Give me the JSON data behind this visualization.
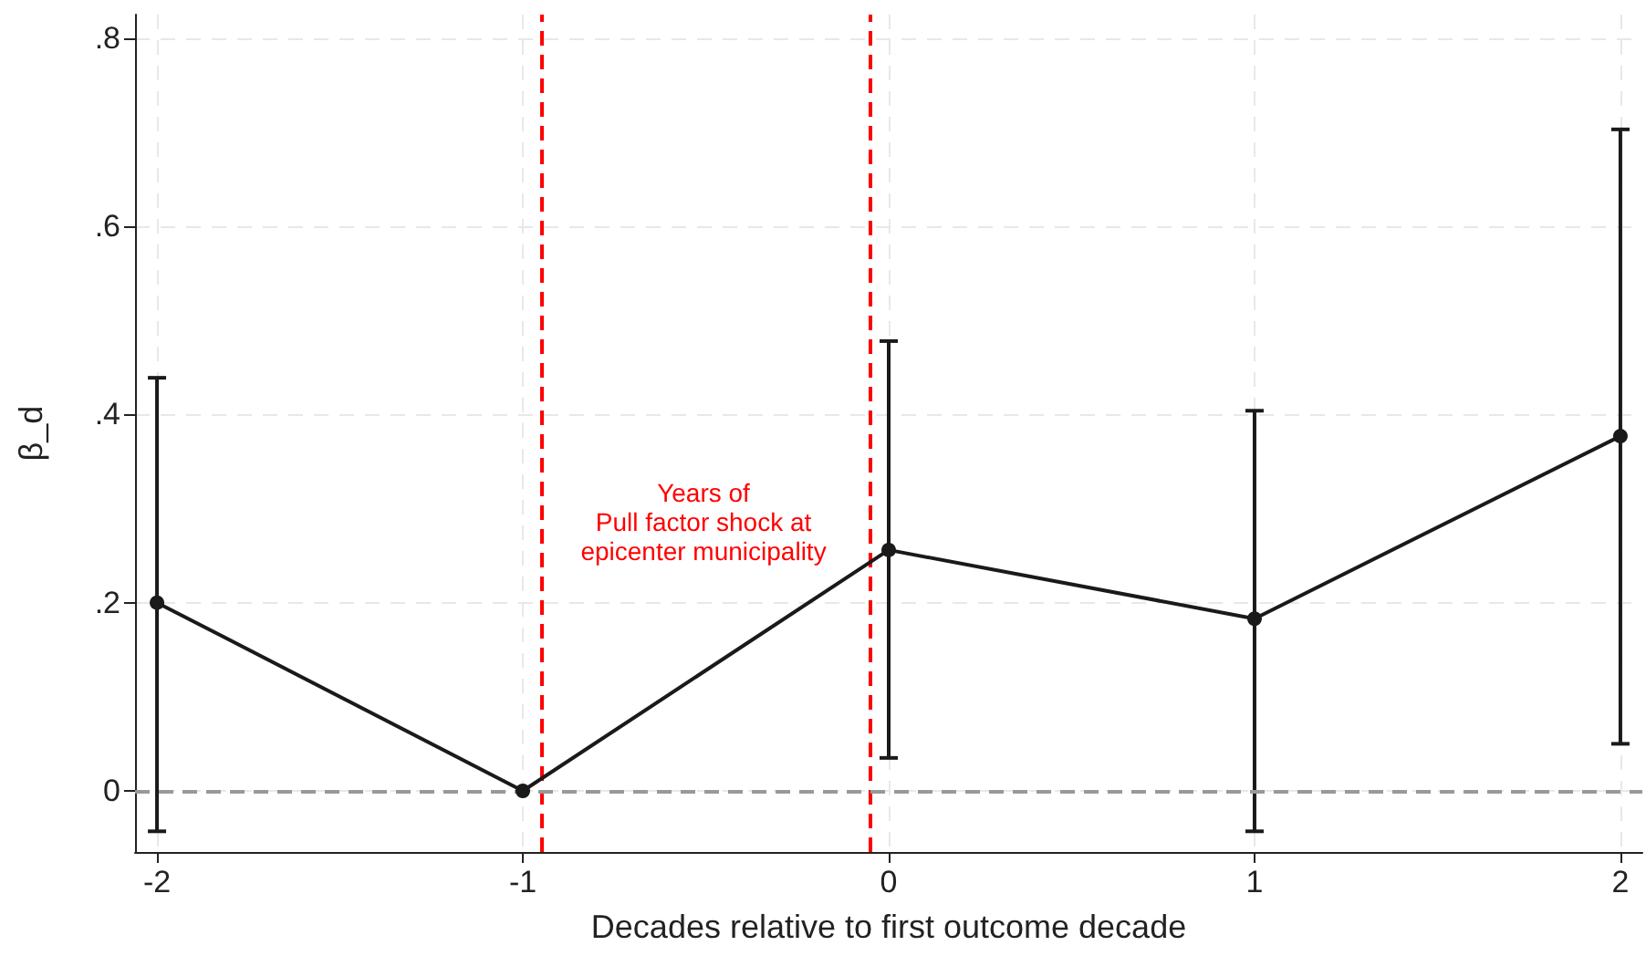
{
  "chart_data": {
    "type": "line",
    "xlabel": "Decades relative to first outcome decade",
    "ylabel": "β_d",
    "x": [
      -2,
      -1,
      0,
      1,
      2
    ],
    "series": [
      {
        "color": "#1a1a1a",
        "values": [
          0.2,
          0,
          0.256,
          0.183,
          0.377
        ],
        "errors": [
          [
            -0.043,
            0.439
          ],
          null,
          [
            0.035,
            0.478
          ],
          [
            -0.043,
            0.404
          ],
          [
            0.05,
            0.703
          ]
        ]
      }
    ],
    "xlim": [
      -2.06,
      2.06
    ],
    "xticks": [
      -2,
      -1,
      0,
      1,
      2
    ],
    "ylim": [
      -0.065,
      0.825
    ],
    "yticks": [
      {
        "value": 0,
        "label": "0"
      },
      {
        "value": 0.2,
        "label": ".2"
      },
      {
        "value": 0.4,
        "label": ".4"
      },
      {
        "value": 0.6,
        "label": ".6"
      },
      {
        "value": 0.8,
        "label": ".8"
      }
    ],
    "ref_lines": [
      {
        "axis": "y",
        "value": 0,
        "color": "#999999",
        "line_style": "dashed"
      },
      {
        "axis": "x",
        "value": -0.95,
        "color": "#ff0000",
        "line_style": "dashed"
      },
      {
        "axis": "x",
        "value": -0.05,
        "color": "#ff0000",
        "line_style": "dashed"
      }
    ],
    "annotations": [
      "Years of\nPull factor shock at\nepicenter municipality"
    ],
    "grid": true,
    "marker": "circle",
    "line_style": "solid"
  }
}
